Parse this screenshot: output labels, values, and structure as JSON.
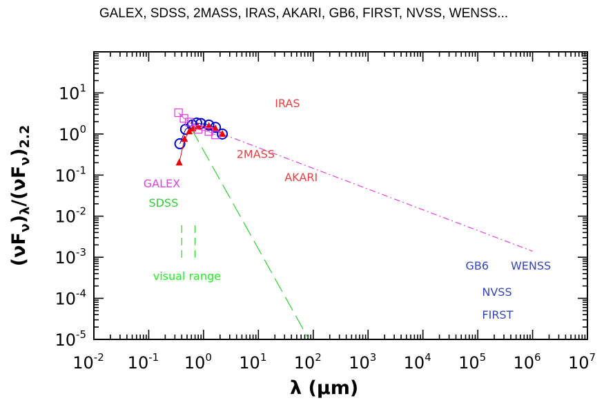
{
  "chart_data": {
    "type": "scatter",
    "title": "GALEX, SDSS, 2MASS, IRAS, AKARI, GB6, FIRST, NVSS, WENSS...",
    "xlabel": "λ   (μm)",
    "ylabel": "(νF_ν)_λ/(νF_ν)_2.2",
    "x_scale": "log",
    "y_scale": "log",
    "xlim": [
      0.01,
      10000000
    ],
    "ylim": [
      1e-05,
      100
    ],
    "grid": false,
    "x_ticks": [
      {
        "base": "10",
        "exp": "-2",
        "value": 0.01
      },
      {
        "base": "10",
        "exp": "-1",
        "value": 0.1
      },
      {
        "base": "10",
        "exp": "0",
        "value": 1
      },
      {
        "base": "10",
        "exp": "1",
        "value": 10
      },
      {
        "base": "10",
        "exp": "2",
        "value": 100
      },
      {
        "base": "10",
        "exp": "3",
        "value": 1000
      },
      {
        "base": "10",
        "exp": "4",
        "value": 10000
      },
      {
        "base": "10",
        "exp": "5",
        "value": 100000
      },
      {
        "base": "10",
        "exp": "6",
        "value": 1000000
      },
      {
        "base": "10",
        "exp": "7",
        "value": 10000000
      }
    ],
    "y_ticks": [
      {
        "base": "10",
        "exp": "1",
        "value": 10
      },
      {
        "base": "10",
        "exp": "0",
        "value": 1
      },
      {
        "base": "10",
        "exp": "-1",
        "value": 0.1
      },
      {
        "base": "10",
        "exp": "-2",
        "value": 0.01
      },
      {
        "base": "10",
        "exp": "-3",
        "value": 0.001
      },
      {
        "base": "10",
        "exp": "-4",
        "value": 0.0001
      },
      {
        "base": "10",
        "exp": "-5",
        "value": 1e-05
      }
    ],
    "series": [
      {
        "marker": "open-circle",
        "color": "#0000cc",
        "x": [
          0.37,
          0.47,
          0.62,
          0.75,
          0.89,
          1.25,
          1.65,
          2.2
        ],
        "y": [
          0.58,
          1.3,
          1.65,
          1.85,
          1.8,
          1.65,
          1.45,
          1.0
        ]
      },
      {
        "marker": "filled-triangle",
        "color": "#ee0000",
        "x": [
          0.36,
          0.45,
          0.55,
          0.64,
          0.79,
          1.25,
          1.65,
          2.2
        ],
        "y": [
          0.2,
          0.75,
          1.15,
          1.35,
          1.5,
          1.55,
          1.35,
          1.0
        ]
      },
      {
        "marker": "open-square",
        "color": "#dd44dd",
        "x": [
          0.35,
          0.44,
          0.55,
          0.8,
          1.25,
          1.65
        ],
        "y": [
          3.3,
          2.4,
          1.95,
          1.3,
          1.15,
          0.95
        ]
      }
    ],
    "lines": [
      {
        "style": "dash-dot",
        "color": "#dd44dd",
        "x": [
          2.2,
          1000000
        ],
        "y": [
          1.0,
          0.0014
        ]
      },
      {
        "style": "long-dash",
        "color": "#33cc33",
        "x": [
          0.6,
          80
        ],
        "y": [
          1.35,
          1.1e-05
        ]
      }
    ],
    "visual_range": {
      "color": "#33cc33",
      "x": [
        0.4,
        0.7
      ],
      "y": [
        0.0008,
        0.006
      ]
    },
    "annotations": [
      {
        "text": "IRAS",
        "color": "#e84040",
        "x": 20,
        "y": 4.5
      },
      {
        "text": "2MASS",
        "color": "#e84040",
        "x": 4,
        "y": 0.26
      },
      {
        "text": "AKARI",
        "color": "#e84040",
        "x": 30,
        "y": 0.072
      },
      {
        "text": "GALEX",
        "color": "#dd44dd",
        "x": 0.08,
        "y": 0.05
      },
      {
        "text": "SDSS",
        "color": "#33cc33",
        "x": 0.1,
        "y": 0.017
      },
      {
        "text": "visual range",
        "color": "#22ee22",
        "x": 0.12,
        "y": 0.00028,
        "big": true
      },
      {
        "text": "GB6",
        "color": "#3344bb",
        "x": 60000,
        "y": 0.0005
      },
      {
        "text": "WENSS",
        "color": "#3344bb",
        "x": 400000,
        "y": 0.0005
      },
      {
        "text": "NVSS",
        "color": "#3344bb",
        "x": 120000,
        "y": 0.000115
      },
      {
        "text": "FIRST",
        "color": "#3344bb",
        "x": 120000,
        "y": 3.2e-05
      }
    ]
  }
}
